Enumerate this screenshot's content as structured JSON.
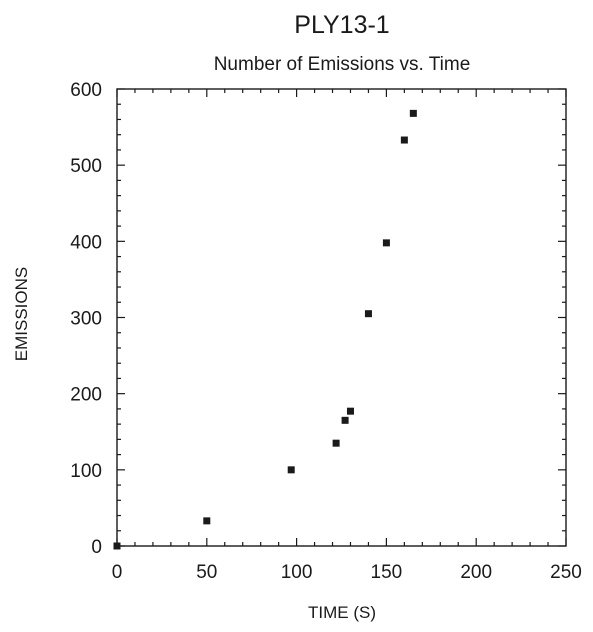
{
  "chart_data": {
    "type": "scatter",
    "title": "PLY13-1",
    "subtitle": "Number of Emissions vs. Time",
    "xlabel": "TIME (S)",
    "ylabel": "EMISSIONS",
    "xlim": [
      0,
      250
    ],
    "ylim": [
      0,
      600
    ],
    "x_ticks": [
      0,
      50,
      100,
      150,
      200,
      250
    ],
    "y_ticks": [
      0,
      100,
      200,
      300,
      400,
      500,
      600
    ],
    "grid": false,
    "series": [
      {
        "x": [
          0,
          50,
          97,
          122,
          127,
          130,
          140,
          150,
          160,
          165
        ],
        "y": [
          0,
          33,
          100,
          135,
          165,
          177,
          305,
          398,
          533,
          568
        ]
      }
    ]
  }
}
